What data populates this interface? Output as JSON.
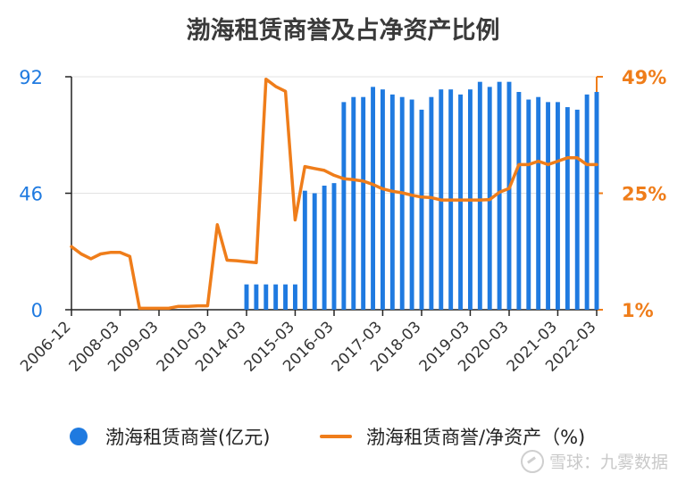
{
  "chart_data": {
    "type": "bar+line",
    "title": "渤海租赁商誉及占净资产比例",
    "x_tick_labels": [
      "2006-12",
      "2008-03",
      "2009-03",
      "2010-03",
      "2014-03",
      "2015-03",
      "2016-03",
      "2017-03",
      "2018-03",
      "2019-03",
      "2020-03",
      "2021-03",
      "2022-03"
    ],
    "left_axis": {
      "ticks": [
        "0",
        "46",
        "92"
      ],
      "ylim": [
        0,
        92
      ]
    },
    "right_axis": {
      "ticks": [
        "1%",
        "25%",
        "49%"
      ],
      "ylim": [
        1,
        49
      ]
    },
    "grid": true,
    "legend_placement": "bottom",
    "series": [
      {
        "name": "渤海租赁商誉(亿元)",
        "type": "bar",
        "axis": "left",
        "color": "#1f7ae0",
        "x": [
          18,
          19,
          20,
          21,
          22,
          23,
          24,
          25,
          26,
          27,
          28,
          29,
          30,
          31,
          32,
          33,
          34,
          35,
          36,
          37,
          38,
          39,
          40,
          41,
          42,
          43,
          44,
          45,
          46,
          47,
          48,
          49,
          50,
          51,
          52,
          53,
          54
        ],
        "values": [
          10,
          10,
          10,
          10,
          10,
          10,
          47,
          46,
          49,
          50,
          82,
          84,
          84,
          88,
          87,
          85,
          84,
          83,
          79,
          84,
          87,
          87,
          85,
          87,
          90,
          88,
          90,
          90,
          86,
          83,
          84,
          82,
          82,
          80,
          79,
          85,
          86
        ]
      },
      {
        "name": "渤海租赁商誉/净资产（%)",
        "type": "line",
        "axis": "right",
        "color": "#ef7d1a",
        "x": [
          0,
          1,
          2,
          3,
          4,
          5,
          6,
          7,
          8,
          9,
          10,
          11,
          12,
          13,
          14,
          15,
          16,
          17,
          18,
          19,
          20,
          21,
          22,
          23,
          24,
          25,
          26,
          27,
          28,
          29,
          30,
          31,
          32,
          33,
          34,
          35,
          36,
          37,
          38,
          39,
          40,
          41,
          42,
          43,
          44,
          45,
          46,
          47,
          48,
          49,
          50,
          51,
          52,
          53,
          54
        ],
        "values": [
          14,
          12.5,
          11.5,
          12.5,
          12.8,
          12.8,
          12,
          1.3,
          1.3,
          1.3,
          1.3,
          1.7,
          1.7,
          1.8,
          1.8,
          18.5,
          11.2,
          11.1,
          10.9,
          10.7,
          48.5,
          47,
          46,
          19.5,
          30.5,
          30.1,
          29.7,
          28.7,
          28,
          27.8,
          27.5,
          26.8,
          25.9,
          25.4,
          25.1,
          24.6,
          24.2,
          24.1,
          23.6,
          23.6,
          23.6,
          23.6,
          23.6,
          23.7,
          25.2,
          26,
          30.9,
          30.9,
          31.6,
          30.9,
          31.6,
          32.3,
          32.3,
          30.9,
          30.9
        ]
      }
    ]
  },
  "watermark": "雪球：九雾数据"
}
